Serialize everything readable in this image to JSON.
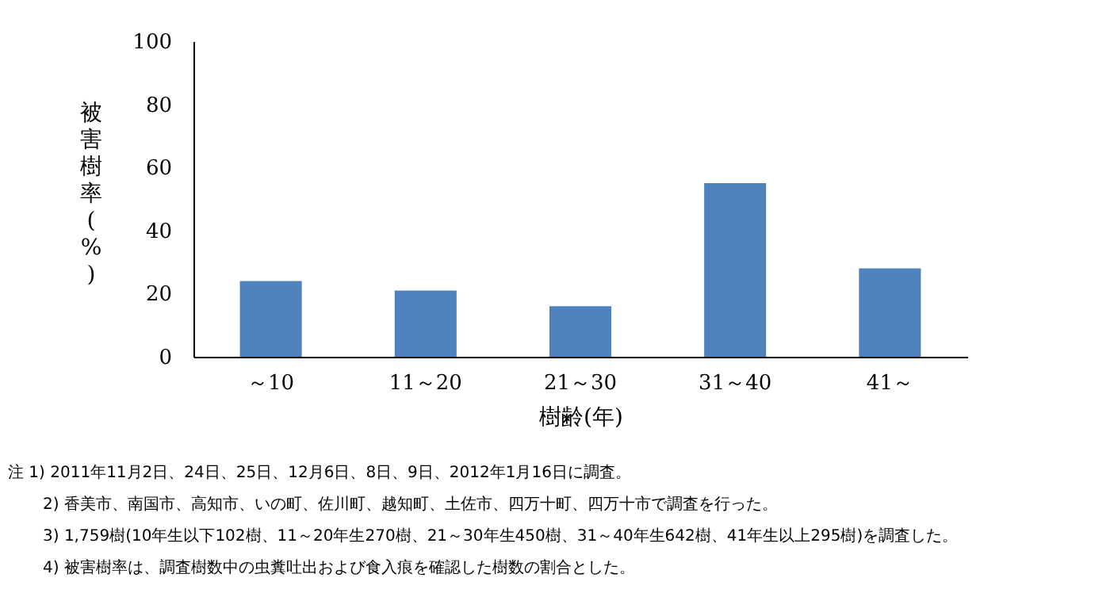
{
  "chart_data": {
    "type": "bar",
    "xlabel": "樹齢(年)",
    "ylabel": "被害樹率(%)",
    "categories": [
      "～10",
      "11～20",
      "21～30",
      "31～40",
      "41～"
    ],
    "series": [
      {
        "color": "#4f81bd",
        "values": [
          24,
          21,
          16,
          55,
          28
        ]
      }
    ],
    "ylim": [
      0,
      100
    ],
    "yticks": [
      0,
      20,
      40,
      60,
      80,
      100
    ],
    "grid": false,
    "annotations": [
      "注 1)  2011年11月2日、24日、25日、12月6日、8日、9日、2012年1月16日に調査。",
      "2)  香美市、南国市、高知市、いの町、佐川町、越知町、土佐市、四万十町、四万十市で調査を行った。",
      "3)  1,759樹(10年生以下102樹、11～20年生270樹、21～30年生450樹、31～40年生642樹、41年生以上295樹)を調査した。",
      "4)  被害樹率は、調査樹数中の虫糞吐出および食入痕を確認した樹数の割合とした。"
    ]
  }
}
